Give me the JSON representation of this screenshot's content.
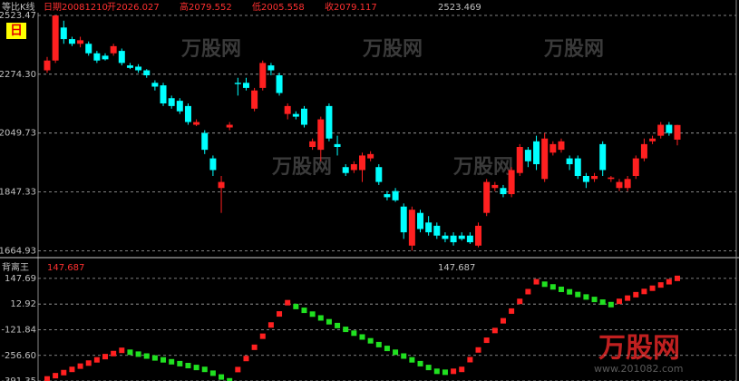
{
  "header": {
    "top_title": "等比K线",
    "date": "日期20081210",
    "open": "开2026.027",
    "high": "高2079.552",
    "low": "低2005.558",
    "close": "收2079.117",
    "max_marker": "2523.469",
    "period": "日",
    "bottom_title": "背离王",
    "bottom_value_red": "147.687",
    "bottom_value_white": "147.687"
  },
  "watermark": {
    "brand": "万股网",
    "url": "www.201082.com"
  },
  "chart_data": [
    {
      "type": "candlestick",
      "log_scale": true,
      "grid": true,
      "up_color": "#ff2020",
      "down_color": "#00ffff",
      "ylim": [
        1650,
        2560
      ],
      "yticks": [
        2523.47,
        {
          "value": 2274.3,
          "label": "2274.30"
        },
        2049.73,
        1847.33,
        1664.93
      ],
      "open": [
        2290,
        2330,
        2470,
        2420,
        2400,
        2400,
        2360,
        2350,
        2360,
        2370,
        2310,
        2305,
        2290,
        2240,
        2230,
        2180,
        2170,
        2150,
        2080,
        2050,
        1960,
        1860,
        2070,
        2240,
        2240,
        2140,
        2220,
        2310,
        2270,
        2120,
        2120,
        2140,
        2000,
        1990,
        2150,
        2010,
        1930,
        1920,
        1920,
        1960,
        1930,
        1840,
        1850,
        1800,
        1680,
        1780,
        1750,
        1740,
        1710,
        1710,
        1710,
        1710,
        1680,
        1780,
        1860,
        1860,
        1840,
        1910,
        1990,
        2020,
        1890,
        1980,
        1990,
        1960,
        1960,
        1900,
        1890,
        2010,
        1890,
        1860,
        1860,
        1900,
        1960,
        2020,
        2040,
        2080,
        2026.027
      ],
      "high": [
        2345,
        2523,
        2500,
        2430,
        2430,
        2410,
        2370,
        2360,
        2400,
        2380,
        2320,
        2315,
        2295,
        2250,
        2240,
        2190,
        2180,
        2160,
        2100,
        2060,
        1970,
        1900,
        2090,
        2260,
        2260,
        2220,
        2330,
        2320,
        2280,
        2160,
        2130,
        2150,
        2030,
        2110,
        2160,
        2040,
        1940,
        1950,
        1980,
        1985,
        1940,
        1850,
        1860,
        1810,
        1800,
        1790,
        1770,
        1750,
        1720,
        1720,
        1720,
        1720,
        1750,
        1890,
        1880,
        1870,
        1930,
        2010,
        2000,
        2040,
        2050,
        2020,
        2030,
        1970,
        1970,
        1910,
        1910,
        2020,
        1900,
        1890,
        1900,
        1970,
        2030,
        2040,
        2090,
        2090,
        2079.552
      ],
      "low": [
        2280,
        2320,
        2400,
        2390,
        2385,
        2350,
        2320,
        2330,
        2350,
        2310,
        2295,
        2280,
        2260,
        2210,
        2150,
        2140,
        2120,
        2080,
        2075,
        1975,
        1900,
        1780,
        2060,
        2190,
        2210,
        2130,
        2210,
        2270,
        2190,
        2100,
        2100,
        2070,
        1990,
        1950,
        2020,
        1970,
        1900,
        1910,
        1880,
        1950,
        1870,
        1820,
        1815,
        1700,
        1665,
        1720,
        1710,
        1700,
        1690,
        1680,
        1695,
        1685,
        1675,
        1770,
        1850,
        1830,
        1830,
        1900,
        1930,
        1920,
        1880,
        1970,
        1980,
        1920,
        1890,
        1860,
        1880,
        1900,
        1880,
        1850,
        1850,
        1890,
        1950,
        2010,
        2030,
        2040,
        2005.558
      ],
      "close": [
        2330,
        2523,
        2420,
        2400,
        2415,
        2360,
        2330,
        2335,
        2390,
        2320,
        2300,
        2290,
        2270,
        2225,
        2160,
        2150,
        2130,
        2090,
        2090,
        1990,
        1920,
        1880,
        2080,
        2235,
        2220,
        2210,
        2320,
        2290,
        2200,
        2150,
        2110,
        2080,
        2020,
        2100,
        2030,
        2000,
        1910,
        1940,
        1970,
        1975,
        1880,
        1830,
        1820,
        1720,
        1790,
        1730,
        1720,
        1710,
        1700,
        1690,
        1700,
        1690,
        1740,
        1880,
        1870,
        1840,
        1920,
        2000,
        1950,
        1940,
        2030,
        2010,
        2020,
        1940,
        1900,
        1880,
        1900,
        1920,
        1895,
        1880,
        1890,
        1960,
        2010,
        2030,
        2080,
        2050,
        2079.117
      ]
    },
    {
      "type": "dot",
      "up_color": "#ff2020",
      "down_color": "#20e020",
      "ylim": [
        -410,
        247
      ],
      "yticks": [
        147.69,
        12.92,
        -121.84,
        {
          "value": -256.6,
          "label": "-256.60"
        },
        -391.35
      ],
      "values": [
        -380,
        -363,
        -347,
        -330,
        -313,
        -297,
        -280,
        -263,
        -247,
        -230,
        -240,
        -250,
        -260,
        -270,
        -280,
        -290,
        -300,
        -310,
        -320,
        -330,
        -350,
        -370,
        -390,
        -331,
        -273,
        -214,
        -156,
        -97,
        -39,
        20,
        0,
        -20,
        -40,
        -60,
        -80,
        -100,
        -120,
        -140,
        -160,
        -180,
        -200,
        -220,
        -240,
        -260,
        -280,
        -300,
        -320,
        -340,
        -345,
        -340,
        -330,
        -279,
        -228,
        -177,
        -126,
        -75,
        -24,
        27,
        78,
        130,
        117,
        103,
        90,
        77,
        63,
        50,
        37,
        23,
        10,
        27,
        44,
        62,
        79,
        96,
        113,
        130,
        147.687
      ]
    }
  ]
}
